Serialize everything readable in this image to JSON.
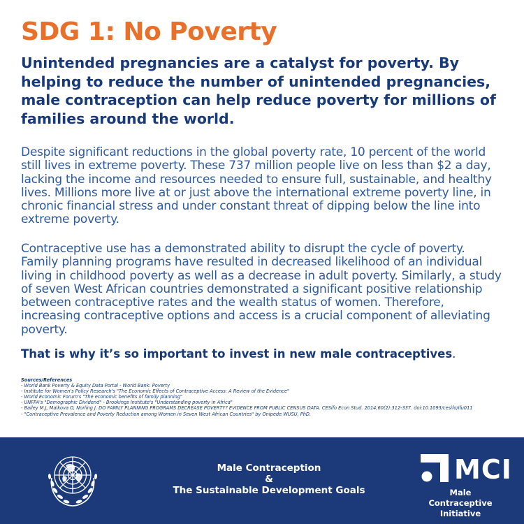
{
  "title": "SDG 1: No Poverty",
  "lead": "Unintended pregnancies are a catalyst for poverty. By helping to reduce the number of unintended pregnancies, male contraception can help reduce poverty for millions of families around the world.",
  "paragraphs": [
    "Despite significant reductions in the global poverty rate, 10 percent of the world still lives in extreme poverty. These 737 million people live on less than $2 a day, lacking the income and resources needed to ensure full, sustainable, and healthy lives. Millions more live at or just above the international extreme poverty line, in chronic financial stress and under constant threat of dipping below the line into extreme poverty.",
    "Contraceptive use has a demonstrated ability to disrupt the cycle of poverty. Family planning programs have resulted in decreased likelihood of an individual living in childhood poverty as well as a decrease in adult poverty. Similarly, a study of seven West African countries demonstrated a significant positive relationship between contraceptive rates and the wealth status of women. Therefore, increasing contraceptive options and access is a crucial component of alleviating poverty."
  ],
  "closing": "That is why it’s so important to invest in new male contraceptives",
  "closing_punct": ".",
  "sources": {
    "title": "Sources/References",
    "items": [
      "- World Bank Poverty & Equity Data Portal - World Bank: Poverty",
      "- Institute for Women's Policy Research's \"The Economic Effects of Contraceptive Access: A Review of the Evidence\"",
      "- World Economic Forum's \"The economic benefits of family planning\"",
      "- UNFPA's \"Demographic Dividend\" - Brookings Institute's \"Understanding poverty in Africa\"",
      "- Bailey M.J, Malkova O, Norling J. DO FAMILY PLANNING PROGRAMS DECREASE POVERTY? EVIDENCE FROM PUBLIC CENSUS DATA. CESifo Econ Stud. 2014;60(2):312-337. doi:10.1093/cesifo/ifu011",
      "- \"Contraceptive Prevalence and Poverty Reduction among Women in Seven West African Countries\" by Onipede WUSU, PhD."
    ]
  },
  "footer": {
    "line1": "Male Contraception",
    "line2": "&",
    "line3": "The Sustainable Development Goals",
    "logo_letters": "MCI",
    "logo_name_1": "Male Contraceptive",
    "logo_name_2": "Initiative"
  },
  "colors": {
    "title": "#e8702a",
    "navy": "#183a78",
    "body_text": "#2f5a9e",
    "footer_bg": "#1c3a7a"
  },
  "icons": [
    "un-emblem-icon",
    "mci-logo-icon"
  ]
}
